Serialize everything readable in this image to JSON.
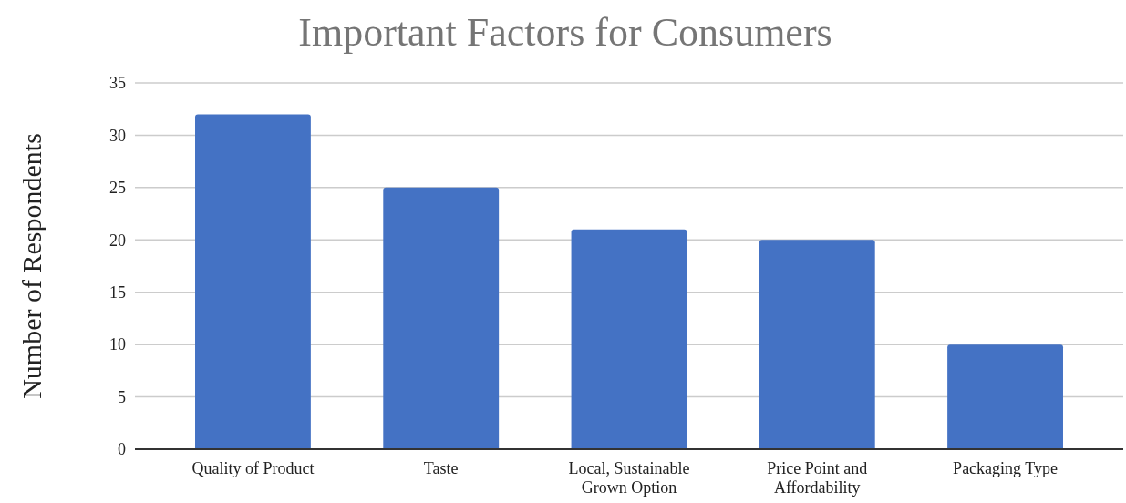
{
  "chart_data": {
    "type": "bar",
    "title": "Important Factors for Consumers",
    "ylabel": "Number of Respondents",
    "categories": [
      "Quality of Product",
      "Taste",
      "Local, Sustainable Grown Option",
      "Price Point and Affordability",
      "Packaging Type"
    ],
    "values": [
      32,
      25,
      21,
      20,
      10
    ],
    "color": "#4472c4",
    "ylim": [
      0,
      35
    ],
    "yticks": [
      0,
      5,
      10,
      15,
      20,
      25,
      30,
      35
    ],
    "grid": "y"
  }
}
